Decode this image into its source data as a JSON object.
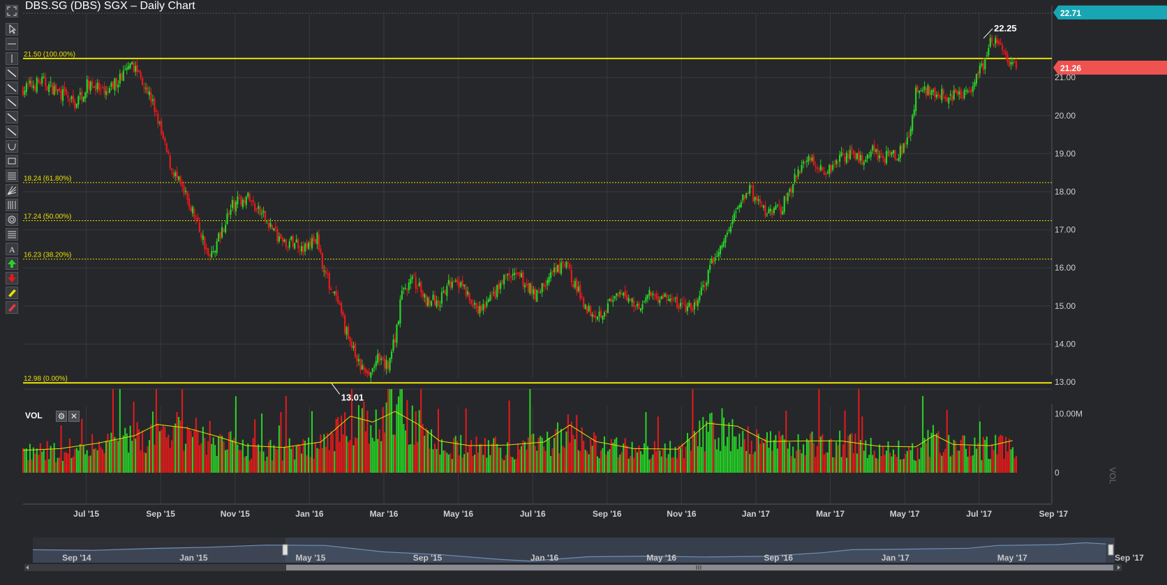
{
  "chart_title": "DBS.SG (DBS) SGX – Daily Chart",
  "toolbar": {
    "tools": [
      "fullscreen-icon",
      "pointer-icon",
      "horizontal-line-icon",
      "vertical-line-icon",
      "trend-line-icon",
      "ray-icon",
      "extended-line-icon",
      "parallel-channel-icon",
      "arrow-line-icon",
      "arc-icon",
      "rectangle-icon",
      "fibonacci-retracement-icon",
      "gann-fan-icon",
      "fibonacci-timezone-icon",
      "fibonacci-circles-icon",
      "fibonacci-arcs-icon",
      "text-icon",
      "buy-arrow-icon",
      "sell-arrow-icon",
      "highlighter-icon",
      "eraser-icon"
    ]
  },
  "volume_panel": {
    "label": "VOL",
    "axis_title": "VOL",
    "axis_tick": "10.00M",
    "axis_zero": "0"
  },
  "navigator": {
    "labels": [
      "Sep '14",
      "Jan '15",
      "May '15",
      "Sep '15",
      "Jan '16",
      "May '16",
      "Sep '16",
      "Jan '17",
      "May '17",
      "Sep '17"
    ],
    "line_color": "#6f8fb5"
  },
  "price_badges": {
    "high": "22.71",
    "last": "21.26",
    "last_color": "#ef5350",
    "high_color": "#18a6b5"
  },
  "colors": {
    "up": "#27d427",
    "down": "#e81a1a",
    "fib": "#e8e000",
    "vol_ma": "#e8e000",
    "background": "#26272b"
  },
  "chart_data": {
    "type": "candlestick",
    "title": "DBS.SG (DBS) SGX – Daily Chart",
    "x_tick_labels": [
      "Jul '15",
      "Sep '15",
      "Nov '15",
      "Jan '16",
      "Mar '16",
      "May '16",
      "Jul '16",
      "Sep '16",
      "Nov '16",
      "Jan '17",
      "Mar '17",
      "May '17",
      "Jul '17",
      "Sep '17"
    ],
    "y_tick_labels": [
      "13.00",
      "14.00",
      "15.00",
      "16.00",
      "17.00",
      "18.00",
      "19.00",
      "20.00",
      "21.00"
    ],
    "ylim": [
      12.6,
      22.95
    ],
    "fibonacci_levels": [
      {
        "label": "21.50 (100.00%)",
        "value": 21.5,
        "style": "solid"
      },
      {
        "label": "18.24 (61.80%)",
        "value": 18.24,
        "style": "dotted"
      },
      {
        "label": "17.24 (50.00%)",
        "value": 17.24,
        "style": "dotted"
      },
      {
        "label": "16.23 (38.20%)",
        "value": 16.23,
        "style": "dotted"
      },
      {
        "label": "12.98 (0.00%)",
        "value": 12.98,
        "style": "solid"
      }
    ],
    "annotations": [
      {
        "label": "22.25",
        "value": 22.25,
        "month_index": 25.8
      },
      {
        "label": "13.01",
        "value": 13.01,
        "month_index": 8.4
      }
    ],
    "last_price": 21.26,
    "visible_high": 22.71,
    "start_month": "May '15",
    "price_path": [
      [
        0,
        20.7
      ],
      [
        0.5,
        20.9
      ],
      [
        1,
        20.6
      ],
      [
        1.4,
        20.3
      ],
      [
        1.8,
        20.9
      ],
      [
        2.2,
        20.5
      ],
      [
        2.6,
        21.0
      ],
      [
        3.0,
        21.3
      ],
      [
        3.3,
        20.8
      ],
      [
        3.6,
        20.0
      ],
      [
        3.8,
        19.2
      ],
      [
        4.0,
        18.6
      ],
      [
        4.3,
        18.0
      ],
      [
        4.6,
        17.4
      ],
      [
        4.9,
        16.6
      ],
      [
        5.0,
        16.2
      ],
      [
        5.3,
        16.9
      ],
      [
        5.6,
        17.6
      ],
      [
        6.0,
        17.9
      ],
      [
        6.3,
        17.5
      ],
      [
        6.6,
        17.2
      ],
      [
        7.0,
        16.6
      ],
      [
        7.3,
        16.7
      ],
      [
        7.6,
        16.5
      ],
      [
        7.9,
        16.8
      ],
      [
        8.1,
        15.9
      ],
      [
        8.4,
        15.2
      ],
      [
        8.7,
        14.3
      ],
      [
        9.0,
        13.5
      ],
      [
        9.3,
        13.1
      ],
      [
        9.5,
        13.6
      ],
      [
        9.8,
        13.4
      ],
      [
        10.0,
        14.2
      ],
      [
        10.2,
        15.4
      ],
      [
        10.5,
        15.7
      ],
      [
        10.8,
        15.2
      ],
      [
        11.2,
        15.1
      ],
      [
        11.6,
        15.8
      ],
      [
        12.0,
        15.2
      ],
      [
        12.2,
        14.8
      ],
      [
        12.6,
        15.2
      ],
      [
        13.0,
        15.8
      ],
      [
        13.4,
        15.7
      ],
      [
        13.8,
        15.3
      ],
      [
        14.2,
        15.8
      ],
      [
        14.6,
        16.1
      ],
      [
        14.9,
        15.4
      ],
      [
        15.2,
        14.9
      ],
      [
        15.5,
        14.8
      ],
      [
        15.8,
        15.1
      ],
      [
        16.2,
        15.3
      ],
      [
        16.5,
        15.0
      ],
      [
        16.9,
        15.3
      ],
      [
        17.3,
        15.2
      ],
      [
        17.7,
        15.0
      ],
      [
        18.0,
        14.9
      ],
      [
        18.3,
        15.5
      ],
      [
        18.6,
        16.3
      ],
      [
        18.9,
        16.8
      ],
      [
        19.2,
        17.6
      ],
      [
        19.5,
        18.1
      ],
      [
        19.8,
        17.6
      ],
      [
        20.1,
        17.4
      ],
      [
        20.4,
        17.6
      ],
      [
        20.7,
        18.2
      ],
      [
        21.0,
        18.9
      ],
      [
        21.3,
        18.8
      ],
      [
        21.6,
        18.5
      ],
      [
        21.9,
        18.9
      ],
      [
        22.2,
        19.0
      ],
      [
        22.5,
        18.8
      ],
      [
        22.8,
        19.1
      ],
      [
        23.2,
        18.9
      ],
      [
        23.5,
        19.0
      ],
      [
        23.8,
        19.3
      ],
      [
        24.0,
        20.6
      ],
      [
        24.4,
        20.7
      ],
      [
        24.8,
        20.5
      ],
      [
        25.2,
        20.5
      ],
      [
        25.5,
        20.8
      ],
      [
        25.8,
        21.3
      ],
      [
        26.0,
        21.9
      ],
      [
        26.3,
        21.9
      ],
      [
        26.5,
        21.3
      ],
      [
        26.7,
        21.2
      ]
    ],
    "volume_ma": [
      [
        0,
        3.8
      ],
      [
        1,
        4.1
      ],
      [
        2,
        5.0
      ],
      [
        3,
        6.3
      ],
      [
        3.6,
        8.2
      ],
      [
        4.4,
        7.6
      ],
      [
        5.2,
        6.2
      ],
      [
        6,
        4.6
      ],
      [
        7,
        4.3
      ],
      [
        8,
        5.2
      ],
      [
        8.8,
        9.6
      ],
      [
        9.4,
        8.6
      ],
      [
        10,
        10.4
      ],
      [
        10.6,
        8.3
      ],
      [
        11.2,
        5.4
      ],
      [
        12,
        4.6
      ],
      [
        13,
        4.7
      ],
      [
        14,
        5.2
      ],
      [
        14.7,
        8.1
      ],
      [
        15.4,
        5.3
      ],
      [
        16.4,
        4.1
      ],
      [
        17.6,
        4.0
      ],
      [
        18.4,
        8.4
      ],
      [
        19.2,
        7.9
      ],
      [
        20.0,
        5.3
      ],
      [
        21,
        5.4
      ],
      [
        22,
        5.4
      ],
      [
        23,
        4.5
      ],
      [
        24.0,
        4.4
      ],
      [
        24.5,
        6.4
      ],
      [
        25,
        4.8
      ],
      [
        26,
        4.6
      ],
      [
        26.7,
        5.6
      ]
    ],
    "volume_scale_max": 14.2
  }
}
